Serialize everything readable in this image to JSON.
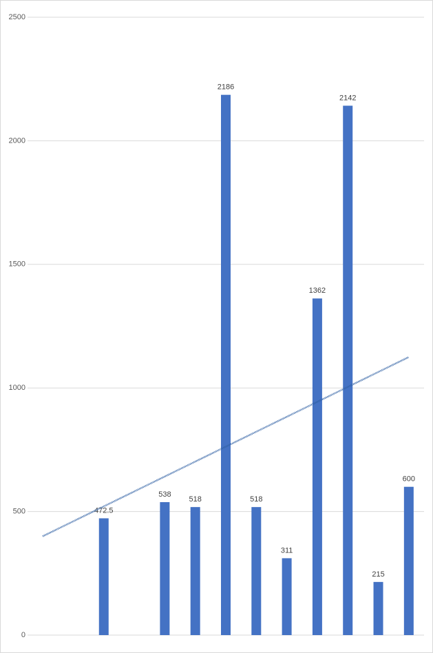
{
  "chart_data": {
    "type": "bar",
    "categories": [
      null,
      null,
      null,
      null,
      null,
      null,
      null,
      null,
      null,
      null,
      null,
      null,
      null
    ],
    "values": [
      null,
      null,
      472.5,
      null,
      538,
      518,
      2186,
      518,
      311,
      1362,
      2142,
      215,
      600
    ],
    "color": "#4472c4",
    "trendline": {
      "values": [
        400,
        1125
      ],
      "color": "#2e5fa3"
    },
    "ylim": [
      0,
      2500
    ],
    "yticks": [
      0,
      500,
      1000,
      1500,
      2000,
      2500
    ],
    "grid": true
  }
}
